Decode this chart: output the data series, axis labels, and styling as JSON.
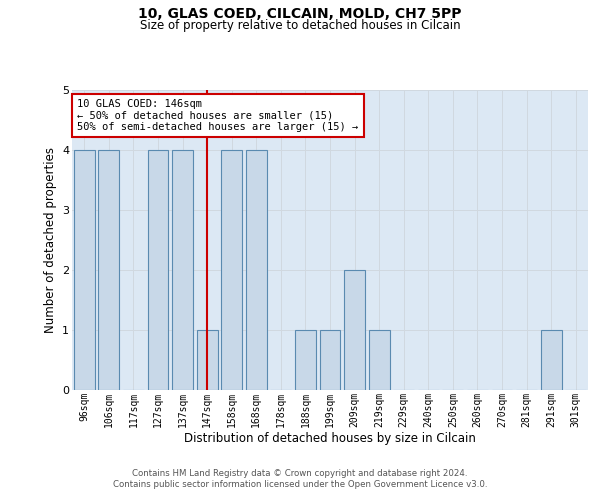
{
  "title1": "10, GLAS COED, CILCAIN, MOLD, CH7 5PP",
  "title2": "Size of property relative to detached houses in Cilcain",
  "xlabel": "Distribution of detached houses by size in Cilcain",
  "ylabel": "Number of detached properties",
  "categories": [
    "96sqm",
    "106sqm",
    "117sqm",
    "127sqm",
    "137sqm",
    "147sqm",
    "158sqm",
    "168sqm",
    "178sqm",
    "188sqm",
    "199sqm",
    "209sqm",
    "219sqm",
    "229sqm",
    "240sqm",
    "250sqm",
    "260sqm",
    "270sqm",
    "281sqm",
    "291sqm",
    "301sqm"
  ],
  "values": [
    4,
    4,
    0,
    4,
    4,
    1,
    4,
    4,
    0,
    1,
    1,
    2,
    1,
    0,
    0,
    0,
    0,
    0,
    0,
    1,
    0
  ],
  "bar_color": "#c8d8e8",
  "bar_edge_color": "#5a8ab0",
  "vline_x_index": 5,
  "vline_color": "#cc0000",
  "ylim": [
    0,
    5
  ],
  "yticks": [
    0,
    1,
    2,
    3,
    4,
    5
  ],
  "annotation_title": "10 GLAS COED: 146sqm",
  "annotation_line1": "← 50% of detached houses are smaller (15)",
  "annotation_line2": "50% of semi-detached houses are larger (15) →",
  "annotation_box_color": "#ffffff",
  "annotation_border_color": "#cc0000",
  "grid_color": "#d0d8e0",
  "bg_color": "#dce8f4",
  "footer1": "Contains HM Land Registry data © Crown copyright and database right 2024.",
  "footer2": "Contains public sector information licensed under the Open Government Licence v3.0."
}
